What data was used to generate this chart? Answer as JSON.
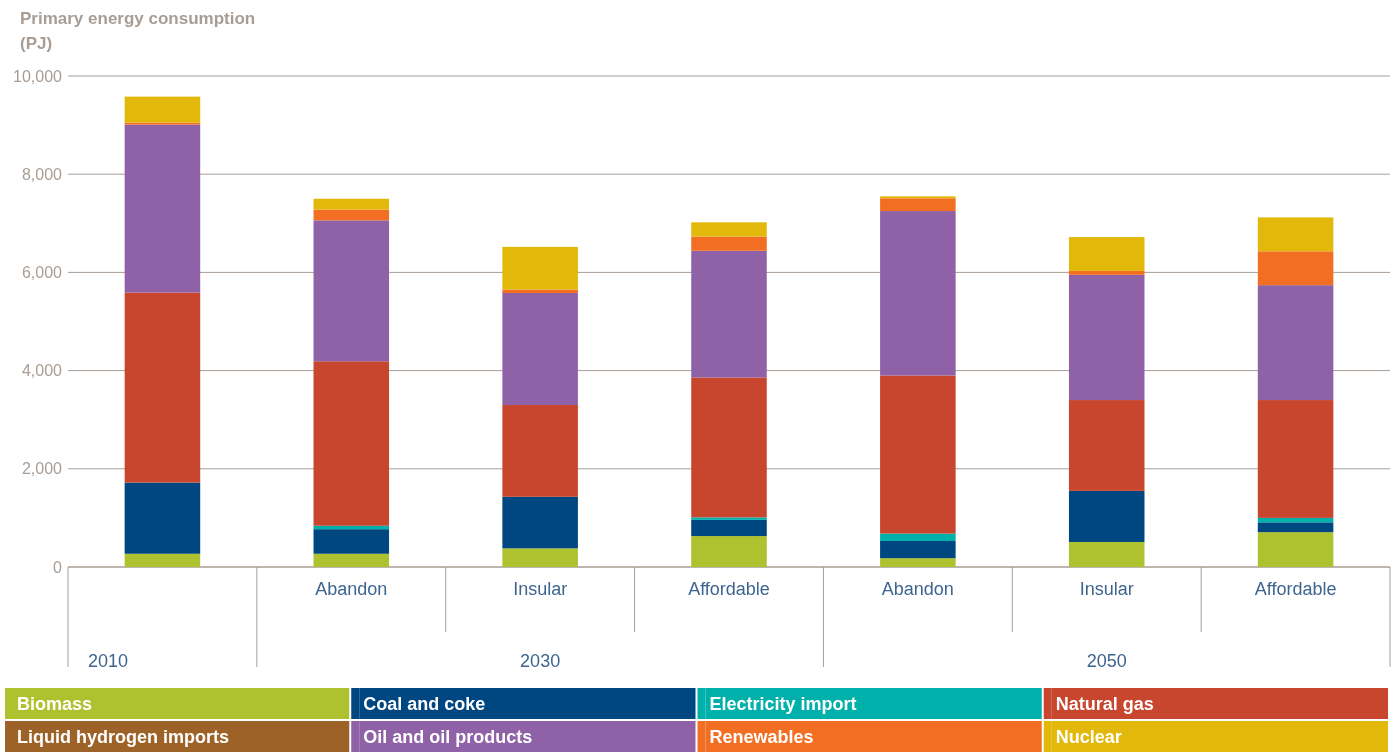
{
  "chart_data": {
    "type": "bar",
    "stacked": true,
    "ylabel": "Primary energy consumption (PJ)",
    "categories": [
      null,
      "Abandon",
      "Insular",
      "Affordable",
      "Abandon",
      "Insular",
      "Affordable"
    ],
    "annotations": [
      "2010",
      "2030",
      "2050"
    ],
    "ylim": [
      0,
      10000
    ],
    "yticks": [
      {
        "value": 0,
        "label": "0"
      },
      {
        "value": 2000,
        "label": "2,000"
      },
      {
        "value": 4000,
        "label": "4,000"
      },
      {
        "value": 6000,
        "label": "6,000"
      },
      {
        "value": 8000,
        "label": "8,000"
      },
      {
        "value": 10000,
        "label": "10,000"
      }
    ],
    "grid": "y",
    "legend": "bottom",
    "series": [
      {
        "name": "Biomass",
        "color": "#adc22e",
        "values": [
          270,
          270,
          380,
          630,
          180,
          510,
          710
        ]
      },
      {
        "name": "Coal and coke",
        "color": "#004680",
        "values": [
          1450,
          500,
          1050,
          330,
          350,
          1040,
          200
        ]
      },
      {
        "name": "Electricity import",
        "color": "#00b0aa",
        "values": [
          0,
          70,
          0,
          50,
          150,
          0,
          90
        ]
      },
      {
        "name": "Natural gas",
        "color": "#c8452e",
        "values": [
          3870,
          3350,
          1870,
          2850,
          3220,
          1850,
          2400
        ]
      },
      {
        "name": "Liquid hydrogen imports",
        "color": "#9c6228",
        "values": [
          0,
          0,
          0,
          0,
          0,
          0,
          0
        ]
      },
      {
        "name": "Oil and oil products",
        "color": "#8f62a8",
        "values": [
          3420,
          2870,
          2280,
          2580,
          3350,
          2550,
          2340
        ]
      },
      {
        "name": "Renewables",
        "color": "#f26e22",
        "values": [
          40,
          220,
          70,
          290,
          260,
          80,
          690
        ]
      },
      {
        "name": "Nuclear",
        "color": "#e2b80a",
        "values": [
          530,
          220,
          870,
          290,
          40,
          690,
          690
        ]
      }
    ]
  }
}
